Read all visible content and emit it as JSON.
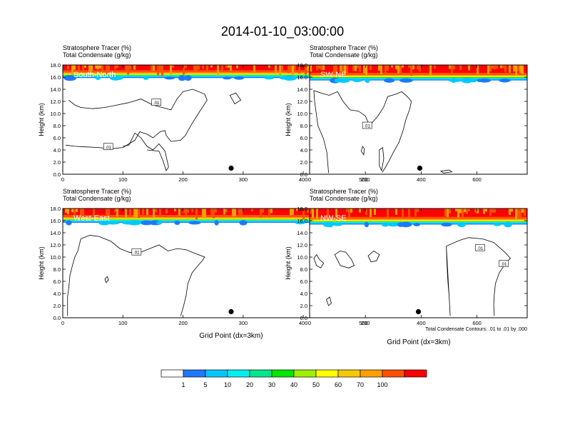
{
  "title": "2014-01-10_03:00:00",
  "colors": {
    "levels": [
      "#ffffff",
      "#1e78ff",
      "#00c8ff",
      "#00f0f0",
      "#00e68c",
      "#00e600",
      "#a0f000",
      "#ffff00",
      "#f5c800",
      "#ffa000",
      "#ff5000",
      "#ff0000"
    ],
    "contour": "#000000",
    "background": "#ffffff"
  },
  "colorbar": {
    "labels": [
      "1",
      "5",
      "10",
      "20",
      "30",
      "40",
      "50",
      "60",
      "70",
      "100"
    ]
  },
  "ylabel": "Height (km)",
  "xlabel": "Grid Point (dx=3km)",
  "footnote": "Total Condensate Contours: .01 to .01 by .000",
  "chart_data": [
    {
      "type": "heatmap",
      "subtitle1": "Stratosphere Tracer   (%)",
      "subtitle2": "Total Condensate   (g/kg)",
      "region": "South-North",
      "xlim": [
        0,
        560
      ],
      "ylim": [
        0,
        18
      ],
      "xticks": [
        "0",
        "100",
        "200",
        "300",
        "400",
        "500"
      ],
      "xtick_values": [
        0,
        100,
        200,
        300,
        400,
        500
      ],
      "yticks": [
        "0.0",
        "2.0",
        "4.0",
        "6.0",
        "8.0",
        "10.0",
        "12.0",
        "14.0",
        "16.0",
        "18.0"
      ],
      "xlabel": "",
      "tropopause_km": 16.2,
      "point": [
        280,
        1.0
      ],
      "contour_labels": [
        {
          "text": ".01",
          "x": 155,
          "y": 11.8
        },
        {
          "text": ".01",
          "x": 75,
          "y": 4.5
        }
      ]
    },
    {
      "type": "heatmap",
      "subtitle1": "Stratosphere Tracer   (%)",
      "subtitle2": "Total Condensate   (g/kg)",
      "region": "SW-NE",
      "xlim": [
        0,
        780
      ],
      "ylim": [
        0,
        18
      ],
      "xticks": [
        "0",
        "200",
        "400",
        "600"
      ],
      "xtick_values": [
        0,
        200,
        400,
        600
      ],
      "yticks": [
        "0.0",
        "2.0",
        "4.0",
        "6.0",
        "8.0",
        "10.0",
        "12.0",
        "14.0",
        "16.0",
        "18.0"
      ],
      "xlabel": "",
      "tropopause_km": 15.8,
      "point": [
        395,
        1.0
      ],
      "contour_labels": [
        {
          "text": ".01",
          "x": 205,
          "y": 8.0
        }
      ]
    },
    {
      "type": "heatmap",
      "subtitle1": "Stratosphere Tracer   (%)",
      "subtitle2": "Total Condensate   (g/kg)",
      "region": "West-East",
      "xlim": [
        0,
        560
      ],
      "ylim": [
        0,
        18
      ],
      "xticks": [
        "0",
        "100",
        "200",
        "300",
        "400",
        "500"
      ],
      "xtick_values": [
        0,
        100,
        200,
        300,
        400,
        500
      ],
      "yticks": [
        "0.0",
        "2.0",
        "4.0",
        "6.0",
        "8.0",
        "10.0",
        "12.0",
        "14.0",
        "16.0",
        "18.0"
      ],
      "xlabel": "Grid Point (dx=3km)",
      "tropopause_km": 16.0,
      "point": [
        280,
        1.0
      ],
      "contour_labels": [
        {
          "text": ".01",
          "x": 122,
          "y": 10.8
        }
      ]
    },
    {
      "type": "heatmap",
      "subtitle1": "Stratosphere Tracer   (%)",
      "subtitle2": "Total Condensate   (g/kg)",
      "region": "NW-SE",
      "xlim": [
        0,
        780
      ],
      "ylim": [
        0,
        18
      ],
      "xticks": [
        "0",
        "200",
        "400",
        "600"
      ],
      "xtick_values": [
        0,
        200,
        400,
        600
      ],
      "yticks": [
        "0.0",
        "2.0",
        "4.0",
        "6.0",
        "8.0",
        "10.0",
        "12.0",
        "14.0",
        "16.0",
        "18.0"
      ],
      "xlabel": "",
      "tropopause_km": 15.7,
      "point": [
        390,
        1.0
      ],
      "contour_labels": [
        {
          "text": ".01",
          "x": 610,
          "y": 11.5
        },
        {
          "text": ".01",
          "x": 695,
          "y": 8.9
        }
      ]
    }
  ]
}
